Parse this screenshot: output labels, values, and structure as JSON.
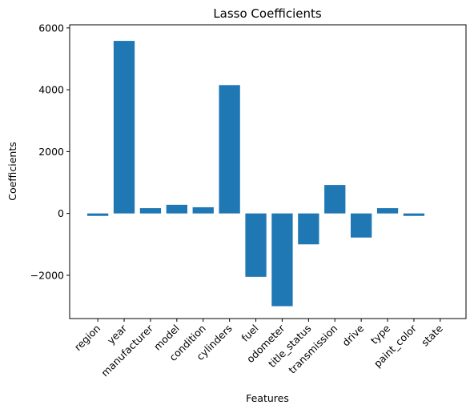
{
  "chart_data": {
    "type": "bar",
    "title": "Lasso Coefficients",
    "xlabel": "Features",
    "ylabel": "Coefficients",
    "categories": [
      "region",
      "year",
      "manufacturer",
      "model",
      "condition",
      "cylinders",
      "fuel",
      "odometer",
      "title_status",
      "transmission",
      "drive",
      "type",
      "paint_color",
      "state"
    ],
    "values": [
      -80,
      5580,
      170,
      280,
      200,
      4150,
      -2050,
      -3000,
      -1000,
      920,
      -780,
      170,
      -80,
      0
    ],
    "ylim": [
      -3400,
      6100
    ],
    "yticks": [
      -2000,
      0,
      2000,
      4000,
      6000
    ],
    "ytick_labels": [
      "−2000",
      "0",
      "2000",
      "4000",
      "6000"
    ],
    "bar_color": "#1f77b4",
    "grid": false,
    "legend": "none"
  }
}
